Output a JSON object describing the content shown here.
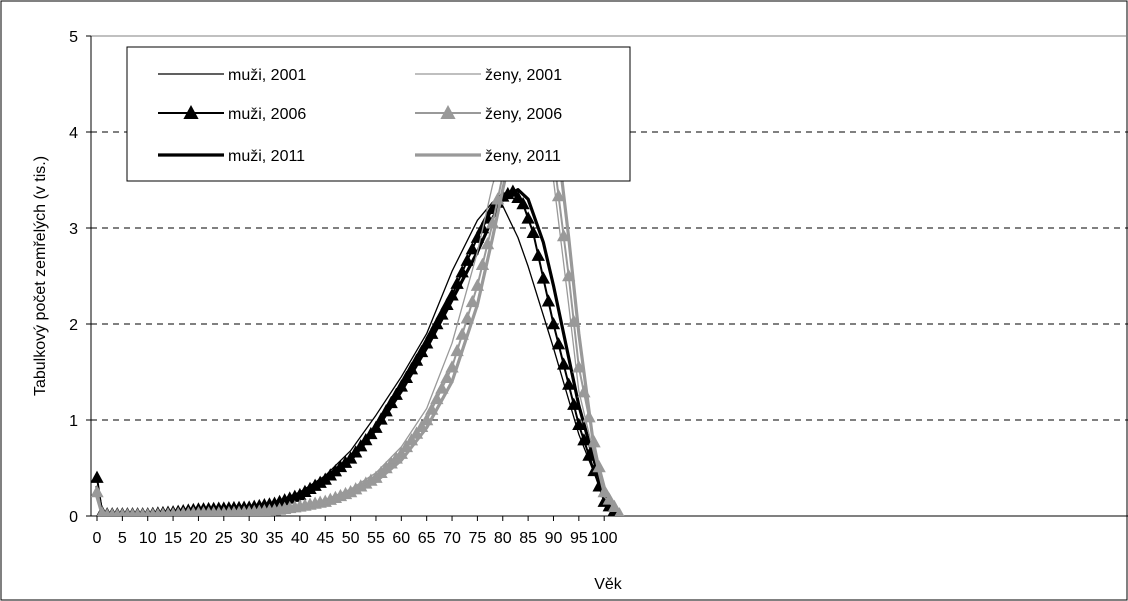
{
  "chart_data": {
    "type": "line",
    "title": "",
    "xlabel": "Věk",
    "ylabel": "Tabulkový počet zemřelých (v tis.)",
    "xlim": [
      0,
      103
    ],
    "ylim": [
      0,
      5
    ],
    "x_ticks": [
      0,
      5,
      10,
      15,
      20,
      25,
      30,
      35,
      40,
      45,
      50,
      55,
      60,
      65,
      70,
      75,
      80,
      85,
      90,
      95,
      100
    ],
    "y_ticks": [
      0,
      1,
      2,
      3,
      4,
      5
    ],
    "grid": "horizontal dashed",
    "legend_position": "top-left",
    "series": [
      {
        "name": "muži, 2001",
        "color": "#000000",
        "style": "thin",
        "marker": "none",
        "points": [
          [
            0,
            0.4
          ],
          [
            1,
            0.05
          ],
          [
            2,
            0.02
          ],
          [
            5,
            0.02
          ],
          [
            10,
            0.02
          ],
          [
            15,
            0.04
          ],
          [
            20,
            0.08
          ],
          [
            25,
            0.08
          ],
          [
            30,
            0.09
          ],
          [
            35,
            0.14
          ],
          [
            40,
            0.25
          ],
          [
            45,
            0.42
          ],
          [
            50,
            0.68
          ],
          [
            55,
            1.05
          ],
          [
            60,
            1.45
          ],
          [
            65,
            1.9
          ],
          [
            70,
            2.55
          ],
          [
            75,
            3.08
          ],
          [
            78,
            3.27
          ],
          [
            80,
            3.23
          ],
          [
            83,
            2.9
          ],
          [
            85,
            2.6
          ],
          [
            90,
            1.75
          ],
          [
            95,
            0.85
          ],
          [
            100,
            0.18
          ],
          [
            103,
            0.02
          ]
        ]
      },
      {
        "name": "muži, 2006",
        "color": "#000000",
        "style": "medium",
        "marker": "triangle",
        "points": [
          [
            0,
            0.4
          ],
          [
            1,
            0.04
          ],
          [
            2,
            0.02
          ],
          [
            5,
            0.02
          ],
          [
            10,
            0.02
          ],
          [
            15,
            0.04
          ],
          [
            20,
            0.07
          ],
          [
            25,
            0.08
          ],
          [
            30,
            0.09
          ],
          [
            35,
            0.13
          ],
          [
            40,
            0.22
          ],
          [
            45,
            0.38
          ],
          [
            50,
            0.6
          ],
          [
            55,
            0.92
          ],
          [
            60,
            1.35
          ],
          [
            65,
            1.8
          ],
          [
            70,
            2.3
          ],
          [
            75,
            2.9
          ],
          [
            78,
            3.2
          ],
          [
            80,
            3.33
          ],
          [
            82,
            3.38
          ],
          [
            84,
            3.25
          ],
          [
            86,
            2.95
          ],
          [
            90,
            2.0
          ],
          [
            95,
            0.95
          ],
          [
            100,
            0.15
          ],
          [
            103,
            0.01
          ]
        ]
      },
      {
        "name": "muži, 2011",
        "color": "#000000",
        "style": "thick",
        "marker": "none",
        "points": [
          [
            0,
            0.3
          ],
          [
            1,
            0.03
          ],
          [
            2,
            0.02
          ],
          [
            5,
            0.02
          ],
          [
            10,
            0.02
          ],
          [
            15,
            0.03
          ],
          [
            20,
            0.06
          ],
          [
            25,
            0.07
          ],
          [
            30,
            0.08
          ],
          [
            35,
            0.12
          ],
          [
            40,
            0.2
          ],
          [
            45,
            0.35
          ],
          [
            50,
            0.58
          ],
          [
            55,
            0.9
          ],
          [
            60,
            1.3
          ],
          [
            65,
            1.75
          ],
          [
            70,
            2.25
          ],
          [
            75,
            2.75
          ],
          [
            78,
            3.1
          ],
          [
            80,
            3.3
          ],
          [
            83,
            3.4
          ],
          [
            85,
            3.3
          ],
          [
            88,
            2.85
          ],
          [
            90,
            2.4
          ],
          [
            95,
            1.15
          ],
          [
            100,
            0.2
          ],
          [
            103,
            0.02
          ]
        ]
      },
      {
        "name": "ženy, 2001",
        "color": "#999999",
        "style": "thin",
        "marker": "none",
        "points": [
          [
            0,
            0.3
          ],
          [
            1,
            0.03
          ],
          [
            2,
            0.01
          ],
          [
            5,
            0.01
          ],
          [
            10,
            0.01
          ],
          [
            15,
            0.02
          ],
          [
            20,
            0.03
          ],
          [
            25,
            0.03
          ],
          [
            30,
            0.04
          ],
          [
            35,
            0.07
          ],
          [
            40,
            0.11
          ],
          [
            45,
            0.17
          ],
          [
            50,
            0.28
          ],
          [
            55,
            0.45
          ],
          [
            60,
            0.72
          ],
          [
            65,
            1.12
          ],
          [
            70,
            1.8
          ],
          [
            75,
            2.75
          ],
          [
            78,
            3.45
          ],
          [
            80,
            3.78
          ],
          [
            83,
            4.2
          ],
          [
            85,
            4.35
          ],
          [
            87,
            4.25
          ],
          [
            90,
            3.5
          ],
          [
            93,
            2.2
          ],
          [
            95,
            1.3
          ],
          [
            100,
            0.2
          ],
          [
            103,
            0.02
          ]
        ]
      },
      {
        "name": "ženy, 2006",
        "color": "#999999",
        "style": "medium",
        "marker": "triangle",
        "points": [
          [
            0,
            0.25
          ],
          [
            1,
            0.03
          ],
          [
            2,
            0.01
          ],
          [
            5,
            0.01
          ],
          [
            10,
            0.01
          ],
          [
            15,
            0.02
          ],
          [
            20,
            0.03
          ],
          [
            25,
            0.03
          ],
          [
            30,
            0.04
          ],
          [
            35,
            0.06
          ],
          [
            40,
            0.1
          ],
          [
            45,
            0.15
          ],
          [
            50,
            0.25
          ],
          [
            55,
            0.4
          ],
          [
            60,
            0.65
          ],
          [
            65,
            1.0
          ],
          [
            70,
            1.55
          ],
          [
            75,
            2.4
          ],
          [
            78,
            3.05
          ],
          [
            80,
            3.55
          ],
          [
            83,
            4.15
          ],
          [
            85,
            4.5
          ],
          [
            86,
            4.6
          ],
          [
            88,
            4.35
          ],
          [
            90,
            3.75
          ],
          [
            93,
            2.5
          ],
          [
            95,
            1.55
          ],
          [
            100,
            0.25
          ],
          [
            103,
            0.02
          ]
        ]
      },
      {
        "name": "ženy, 2011",
        "color": "#999999",
        "style": "thick",
        "marker": "none",
        "points": [
          [
            0,
            0.2
          ],
          [
            1,
            0.02
          ],
          [
            2,
            0.01
          ],
          [
            5,
            0.01
          ],
          [
            10,
            0.01
          ],
          [
            15,
            0.02
          ],
          [
            20,
            0.03
          ],
          [
            25,
            0.03
          ],
          [
            30,
            0.04
          ],
          [
            35,
            0.06
          ],
          [
            40,
            0.09
          ],
          [
            45,
            0.14
          ],
          [
            50,
            0.22
          ],
          [
            55,
            0.36
          ],
          [
            60,
            0.58
          ],
          [
            65,
            0.92
          ],
          [
            70,
            1.4
          ],
          [
            75,
            2.2
          ],
          [
            78,
            2.9
          ],
          [
            80,
            3.4
          ],
          [
            83,
            4.1
          ],
          [
            85,
            4.45
          ],
          [
            87,
            4.6
          ],
          [
            89,
            4.45
          ],
          [
            91,
            3.8
          ],
          [
            93,
            2.9
          ],
          [
            95,
            1.9
          ],
          [
            98,
            0.7
          ],
          [
            100,
            0.3
          ],
          [
            103,
            0.03
          ]
        ]
      }
    ]
  }
}
